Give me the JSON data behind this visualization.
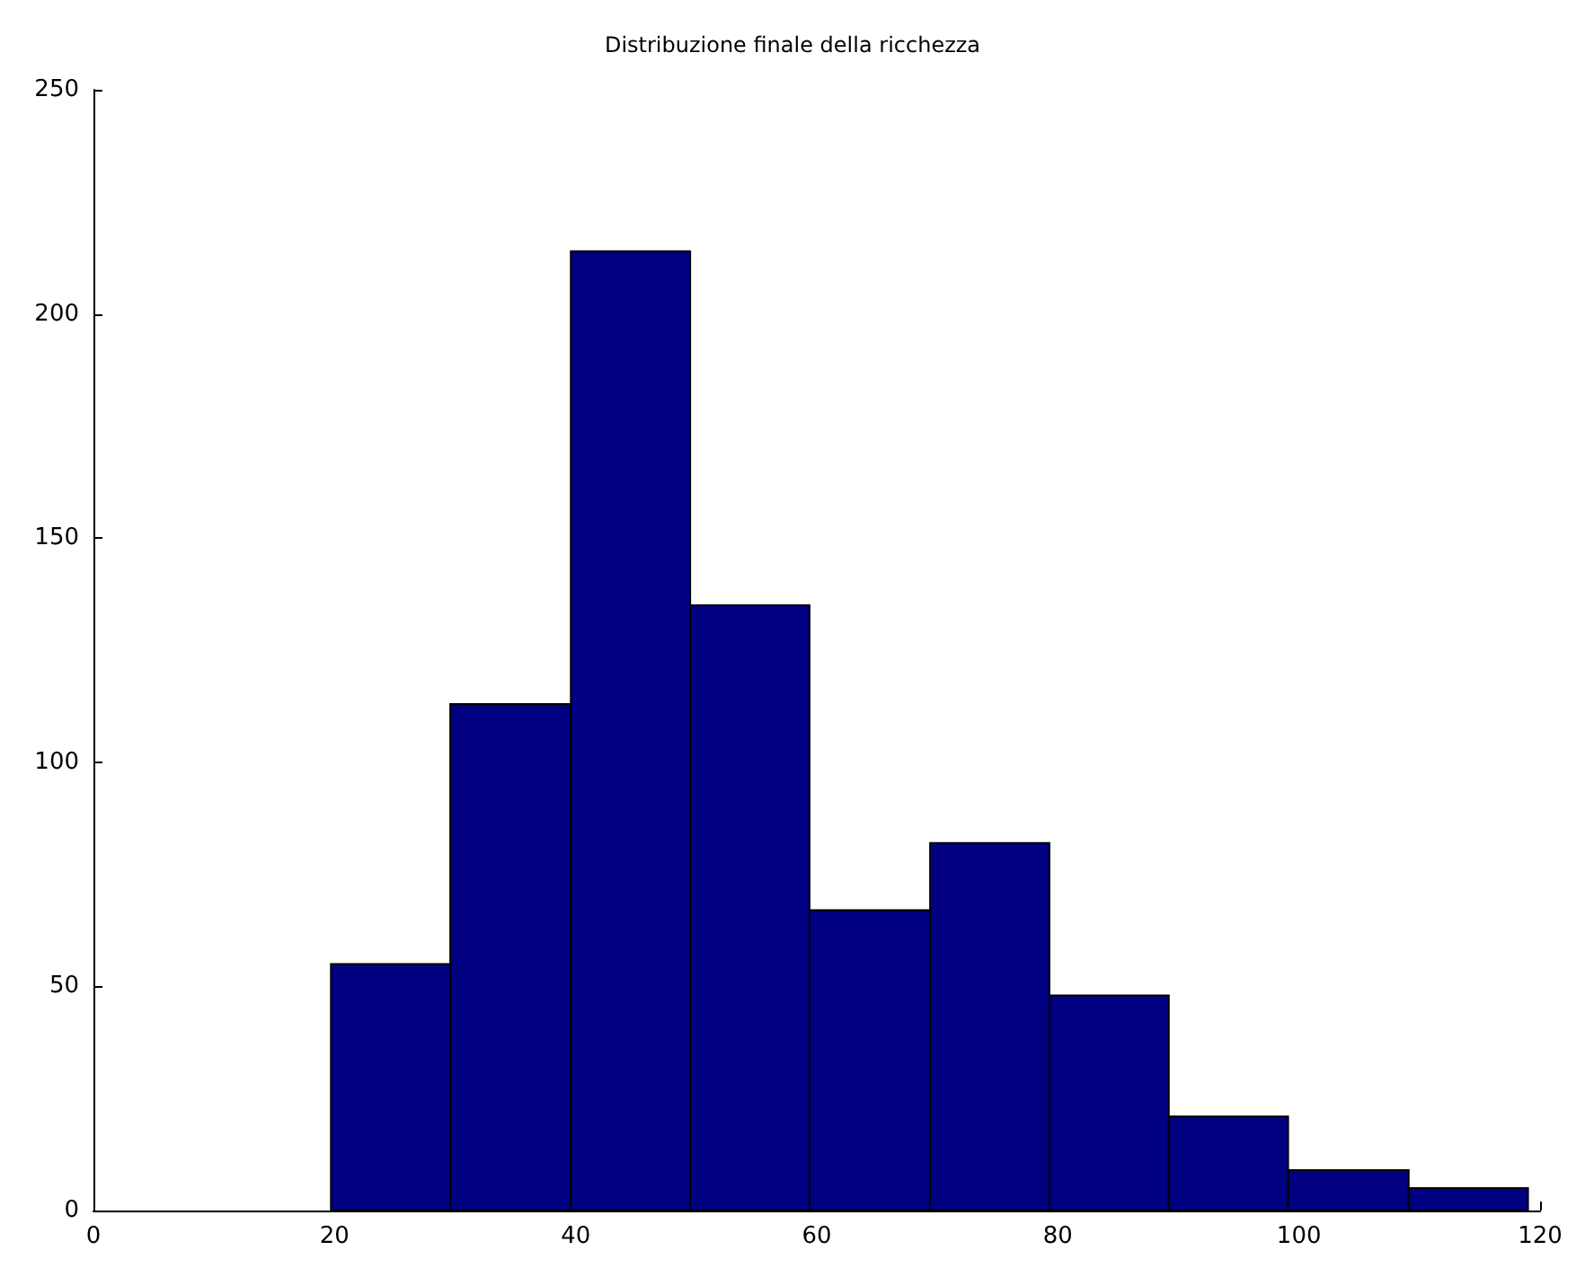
{
  "chart_data": {
    "type": "histogram",
    "title": "Distribuzione finale della ricchezza",
    "bins": [
      19.7,
      29.6,
      39.6,
      49.5,
      59.4,
      69.4,
      79.3,
      89.2,
      99.1,
      109.1,
      119.0
    ],
    "values": [
      55,
      113,
      214,
      135,
      67,
      82,
      48,
      21,
      9,
      5
    ],
    "color": "#000080",
    "xlim": [
      0,
      120
    ],
    "xticks": [
      0,
      20,
      40,
      60,
      80,
      100,
      120
    ],
    "ylim": [
      0,
      250
    ],
    "yticks": [
      0,
      50,
      100,
      150,
      200,
      250
    ],
    "grid": false
  }
}
